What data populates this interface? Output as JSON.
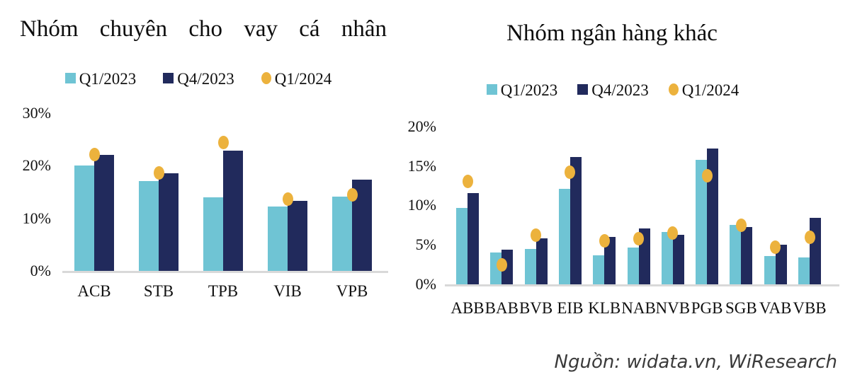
{
  "source": "Nguồn: widata.vn, WiResearch",
  "colors": {
    "q1_2023": "#6FC4D4",
    "q4_2023": "#212A5C",
    "q1_2024": "#ECB23D",
    "axis_line": "#D9D9D9",
    "text": "#111111"
  },
  "chart_data": [
    {
      "type": "bar",
      "title": "Nhóm chuyên cho vay cá nhân",
      "categories": [
        "ACB",
        "STB",
        "TPB",
        "VIB",
        "VPB"
      ],
      "series": [
        {
          "name": "Q1/2023",
          "render": "bar",
          "marker": "square",
          "color": "q1_2023",
          "values": [
            20.1,
            17.1,
            14.0,
            12.3,
            14.1
          ]
        },
        {
          "name": "Q4/2023",
          "render": "bar",
          "marker": "square",
          "color": "q4_2023",
          "values": [
            22.0,
            18.6,
            22.9,
            13.3,
            17.4
          ]
        },
        {
          "name": "Q1/2024",
          "render": "dot",
          "marker": "circle",
          "color": "q1_2024",
          "values": [
            22.1,
            18.6,
            24.4,
            13.6,
            14.4
          ]
        }
      ],
      "ylabel": "",
      "ylim": [
        0,
        30
      ],
      "yticks": [
        "0%",
        "10%",
        "20%",
        "30%"
      ],
      "grid": false,
      "legend_position": "top"
    },
    {
      "type": "bar",
      "title": "Nhóm ngân hàng khác",
      "categories": [
        "ABB",
        "BAB",
        "BVB",
        "EIB",
        "KLB",
        "NAB",
        "NVB",
        "PGB",
        "SGB",
        "VAB",
        "VBB"
      ],
      "series": [
        {
          "name": "Q1/2023",
          "render": "bar",
          "marker": "square",
          "color": "q1_2023",
          "values": [
            9.7,
            4.0,
            4.5,
            12.1,
            3.7,
            4.7,
            6.6,
            15.8,
            7.5,
            3.6,
            3.4
          ]
        },
        {
          "name": "Q4/2023",
          "render": "bar",
          "marker": "square",
          "color": "q4_2023",
          "values": [
            11.6,
            4.4,
            5.8,
            16.1,
            6.0,
            7.1,
            6.3,
            17.2,
            7.3,
            5.0,
            8.4
          ]
        },
        {
          "name": "Q1/2024",
          "render": "dot",
          "marker": "circle",
          "color": "q1_2024",
          "values": [
            13.0,
            2.5,
            6.2,
            14.2,
            5.5,
            5.8,
            6.5,
            13.8,
            7.5,
            4.7,
            6.0
          ]
        }
      ],
      "ylabel": "",
      "ylim": [
        0,
        20
      ],
      "yticks": [
        "0%",
        "5%",
        "10%",
        "15%",
        "20%"
      ],
      "grid": false,
      "legend_position": "top"
    }
  ]
}
